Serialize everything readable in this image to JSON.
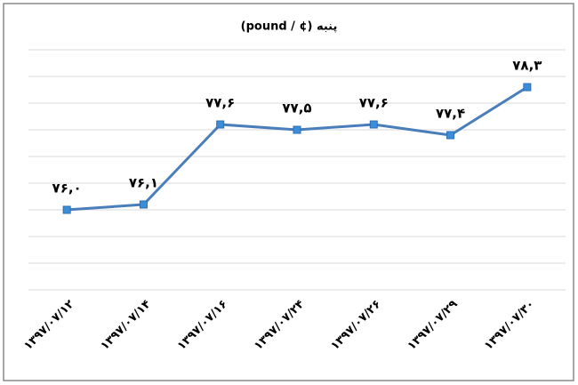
{
  "chart_data": {
    "type": "line",
    "title": "پنبه (¢ / pound)",
    "categories": [
      "۱۳۹۷/۰۷/۱۲",
      "۱۳۹۷/۰۷/۱۴",
      "۱۳۹۷/۰۷/۱۶",
      "۱۳۹۷/۰۷/۲۴",
      "۱۳۹۷/۰۷/۲۶",
      "۱۳۹۷/۰۷/۲۹",
      "۱۳۹۷/۰۷/۳۰"
    ],
    "values": [
      76.0,
      76.1,
      77.6,
      77.5,
      77.6,
      77.4,
      78.3
    ],
    "value_labels": [
      "۷۶,۰",
      "۷۶,۱",
      "۷۷,۶",
      "۷۷,۵",
      "۷۷,۶",
      "۷۷,۴",
      "۷۸,۳"
    ],
    "color": "#4a7ebb",
    "ylim": [
      74.5,
      79
    ],
    "yticks": [
      74.5,
      75,
      75.5,
      76,
      76.5,
      77,
      77.5,
      78,
      78.5,
      79
    ],
    "grid": true
  }
}
